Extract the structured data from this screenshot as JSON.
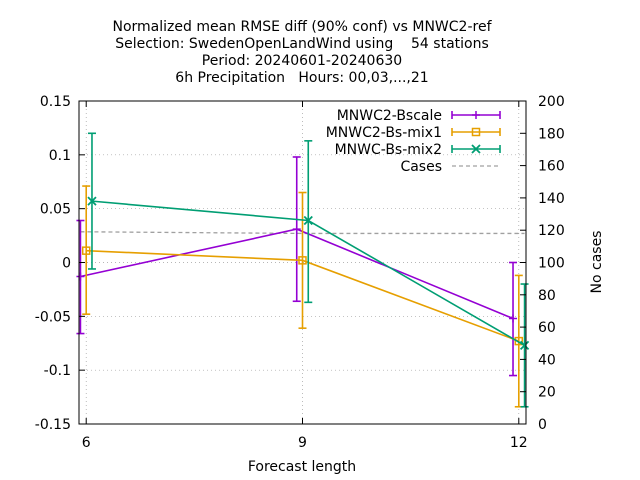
{
  "chart_data": {
    "type": "line",
    "title_lines": [
      "Normalized mean RMSE diff (90% conf) vs MNWC2-ref",
      "Selection: SwedenOpenLandWind using    54 stations",
      "Period: 20240601-20240630",
      "6h Precipitation   Hours: 00,03,...,21"
    ],
    "xlabel": "Forecast length",
    "ylabel": "",
    "y2label": "No cases",
    "xlim": [
      5.9,
      12.1
    ],
    "ylim": [
      -0.15,
      0.15
    ],
    "y2lim": [
      0,
      200
    ],
    "xticks": [
      "6",
      "9",
      "12"
    ],
    "xtick_values": [
      6,
      9,
      12
    ],
    "yticks": [
      "0.15",
      "0.1",
      "0.05",
      "0",
      "-0.05",
      "-0.1",
      "-0.15"
    ],
    "ytick_values": [
      0.15,
      0.1,
      0.05,
      0,
      -0.05,
      -0.1,
      -0.15
    ],
    "y2ticks": [
      "200",
      "180",
      "160",
      "140",
      "120",
      "100",
      "80",
      "60",
      "40",
      "20",
      "0"
    ],
    "y2tick_values": [
      200,
      180,
      160,
      140,
      120,
      100,
      80,
      60,
      40,
      20,
      0
    ],
    "grid": true,
    "legend_position": "top-right",
    "series": [
      {
        "name": "MNWC2-Bscale",
        "color": "#9400d3",
        "marker": "plus",
        "x": [
          5.92,
          8.92,
          11.92
        ],
        "y": [
          -0.013,
          0.031,
          -0.052
        ],
        "err_low": [
          -0.066,
          -0.036,
          -0.105
        ],
        "err_high": [
          0.039,
          0.098,
          0.0
        ]
      },
      {
        "name": "MNWC2-Bs-mix1",
        "color": "#e69f00",
        "marker": "square",
        "x": [
          6.0,
          9.0,
          12.0
        ],
        "y": [
          0.011,
          0.002,
          -0.073
        ],
        "err_low": [
          -0.048,
          -0.061,
          -0.134
        ],
        "err_high": [
          0.071,
          0.065,
          -0.012
        ]
      },
      {
        "name": "MNWC-Bs-mix2",
        "color": "#009e73",
        "marker": "cross",
        "x": [
          6.08,
          9.08,
          12.08
        ],
        "y": [
          0.057,
          0.039,
          -0.077
        ],
        "err_low": [
          -0.006,
          -0.037,
          -0.134
        ],
        "err_high": [
          0.12,
          0.113,
          -0.02
        ]
      }
    ],
    "cases": {
      "name": "Cases",
      "color": "#a0a0a0",
      "x": [
        6.0,
        9.0,
        12.0
      ],
      "values": [
        119,
        118,
        118
      ]
    }
  }
}
